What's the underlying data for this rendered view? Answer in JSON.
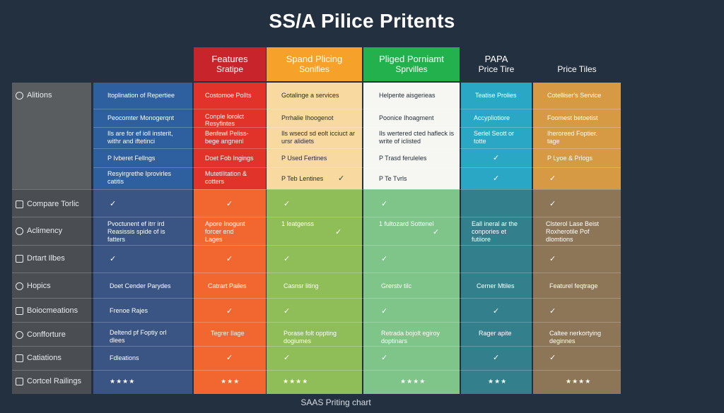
{
  "title": "SS/A Pilice Pritents",
  "caption": "SAAS Priting chart",
  "colors": {
    "background": "#233040",
    "features": "#e2332b",
    "features_header": "#c8242b",
    "spand_header": "#f5a12a",
    "spand_top": "#f8d9a0",
    "pliged_header": "#23b14d",
    "pliged_top": "#f6f7f2",
    "papa_top": "#2aa7c4",
    "price_tiles_top": "#d69a45",
    "feature_col_top": "#2e5f9e"
  },
  "headers": {
    "features": {
      "line1": "Features",
      "line2": "Sratipe"
    },
    "spand": {
      "line1": "Spand Plicing",
      "line2": "Sonifies"
    },
    "pliged": {
      "line1": "Pliged Porniamt",
      "line2": "Sprvilles"
    },
    "papa": {
      "line1": "PAPA",
      "line2": "Price Tire"
    },
    "price_tiles": {
      "line1": "Price Tiles"
    }
  },
  "row_labels": [
    "Alitions",
    "Compare Torlic",
    "Aclimency",
    "Drtart Ilbes",
    "Hopics",
    "Boiocmeations",
    "Confforture",
    "Catiations",
    "Cortcel Railings"
  ],
  "col_feature": {
    "top": [
      "Itoplination of Repertiee",
      "Peocomter Monogerqnt",
      "Ils are for ef ioll insterit,",
      "withr and iftetinci",
      "P Ivberet Fellngs",
      "Resyirgrethe Iprovirles",
      "catitis"
    ],
    "r_compare": "✓",
    "r_aclimency": [
      "Pvoctunent ef itrr ird",
      "Reasissis spide of is",
      "fatters"
    ],
    "r_drtart": "✓",
    "r_hopics": "Doet Cender Parydes",
    "r_boioc": "Frenoe Rajes",
    "r_conf": [
      "Deltend pf Foptiy orl",
      "dlees"
    ],
    "r_cati": "Fdleations",
    "r_rail": "★★★★"
  },
  "col_features": {
    "top": [
      "Costomoe Pollts",
      "Conple lorolct",
      "Resyfintes",
      "Benfewl Peliss-",
      "bege angnenl",
      "Doet Fob Ingings",
      "Mutetilitation &",
      "cotters"
    ],
    "r_compare": "✓",
    "r_aclimency": [
      "Apore Inogunt",
      "forcer end",
      "Lages"
    ],
    "r_drtart": "✓",
    "r_hopics": "Catrart Pailes",
    "r_boioc": "✓",
    "r_conf": "Tegrer Ilage",
    "r_cati": "✓",
    "r_rail": "★★★"
  },
  "col_spand": {
    "top": [
      "Gotalinge a services",
      "Prrhalie Ihoogenot",
      "Ils wsecd sd eolt icciuct ar",
      "ursr alidiets",
      "P Used Fertines",
      "P Teb Lentines"
    ],
    "top_check": "✓",
    "r_compare": "✓",
    "r_aclimency": "1 leatgenss",
    "r_aclimency_check": "✓",
    "r_drtart": "✓",
    "r_hopics": "Casnsr liting",
    "r_boioc": "✓",
    "r_conf": [
      "Porase folt oppting",
      "dogiumes"
    ],
    "r_cati": "✓",
    "r_rail": "★★★★"
  },
  "col_pliged": {
    "top": [
      "Helpente aisgerieas",
      "Poonice Ihoagment",
      "Ils wertered cted hafleck is",
      "write of iclisted",
      "P Trasd feruleles",
      "P Te Tvrls"
    ],
    "r_compare": "✓",
    "r_aclimency": "1 fultozard Sottenel",
    "r_aclimency_check": "✓",
    "r_drtart": "✓",
    "r_hopics": "Grerstv tilc",
    "r_boioc": "✓",
    "r_conf": [
      "Retrada bojolt egiroy",
      "doptinars"
    ],
    "r_cati": "✓",
    "r_rail": "★★★★"
  },
  "col_papa": {
    "top": [
      "Teatise Prolies",
      "Accypliotiore",
      "Serlel Seott or",
      "totte"
    ],
    "top_check1": "✓",
    "top_check2": "✓",
    "r_aclimency": [
      "Eall ineral ar the",
      "conpories et",
      "futiiore"
    ],
    "r_hopics": "Cerner Mtiles",
    "r_boioc": "✓",
    "r_conf": "Rager apite",
    "r_cati": "✓",
    "r_rail": "★★★"
  },
  "col_tiles": {
    "top": [
      "Cotelliser's Service",
      "Foomest betoetist",
      "Iheroreed Foptier.",
      "tage",
      "P Lyoe & Prlogs"
    ],
    "top_check": "✓",
    "r_compare": "✓",
    "r_aclimency": [
      "Clsterol Lase Beist",
      "Roxherotile Pof",
      "dlomtions"
    ],
    "r_drtart": "✓",
    "r_hopics": "Featurel feqtrage",
    "r_boioc": "✓",
    "r_conf": [
      "Caltee nerkortying",
      "deginnes"
    ],
    "r_cati": "✓",
    "r_rail": "★★★★"
  }
}
